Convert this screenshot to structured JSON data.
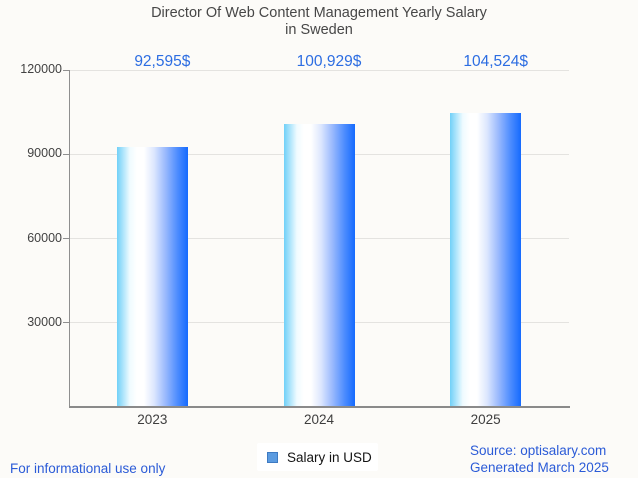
{
  "title": {
    "line1": "Director Of Web Content Management Yearly Salary",
    "line2": "in Sweden"
  },
  "chart_data": {
    "type": "bar",
    "categories": [
      "2023",
      "2024",
      "2025"
    ],
    "series": [
      {
        "name": "Salary in USD",
        "values": [
          92595,
          100929,
          104524
        ]
      }
    ],
    "value_labels": [
      "92,595$",
      "100,929$",
      "104,524$"
    ],
    "yticks": [
      30000,
      60000,
      90000,
      120000
    ],
    "ytick_labels": [
      "30000",
      "60000",
      "90000",
      "120000"
    ],
    "ylim": [
      0,
      120000
    ],
    "xlabel": "",
    "ylabel": "",
    "grid": true,
    "legend_position": "bottom-center",
    "bar_gradient": [
      "#70d0f8",
      "#ffffff",
      "#156afe"
    ],
    "value_label_color": "#2c6de2"
  },
  "legend": {
    "label": "Salary in USD",
    "swatch_color": "#5b9be0"
  },
  "footer": {
    "left_note": "For informational use only",
    "source": "Source: optisalary.com",
    "generated": "Generated March 2025"
  },
  "colors": {
    "background": "#fcfbf8",
    "title_text": "#474747",
    "axis": "#8a8a8a",
    "gridline": "#e4e3e0",
    "tick_text": "#424242",
    "value_label": "#2c6de2",
    "footer_link": "#2b5bd7"
  }
}
